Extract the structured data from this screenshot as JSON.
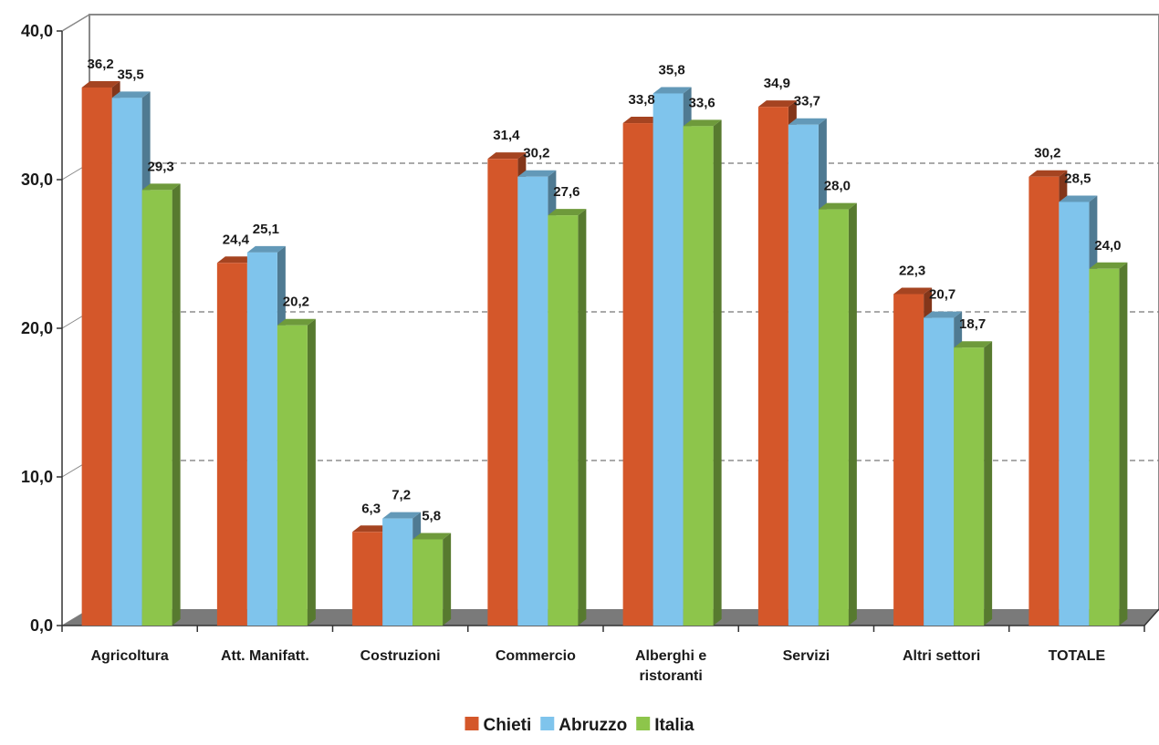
{
  "chart_data": {
    "type": "bar",
    "title": "",
    "xlabel": "",
    "ylabel": "",
    "ylim": [
      0,
      40
    ],
    "yticks": [
      "0,0",
      "10,0",
      "20,0",
      "30,0",
      "40,0"
    ],
    "grid": true,
    "legend_position": "bottom",
    "categories": [
      [
        "Agricoltura"
      ],
      [
        "Att. Manifatt."
      ],
      [
        "Costruzioni"
      ],
      [
        "Commercio"
      ],
      [
        "Alberghi e",
        "ristoranti"
      ],
      [
        "Servizi"
      ],
      [
        "Altri settori"
      ],
      [
        "TOTALE"
      ]
    ],
    "series": [
      {
        "name": "Chieti",
        "color": "#d4572a",
        "values": [
          36.2,
          24.4,
          6.3,
          31.4,
          33.8,
          34.9,
          22.3,
          30.2
        ],
        "labels": [
          "36,2",
          "24,4",
          "6,3",
          "31,4",
          "33,8",
          "34,9",
          "22,3",
          "30,2"
        ]
      },
      {
        "name": "Abruzzo",
        "color": "#7fc4ec",
        "values": [
          35.5,
          25.1,
          7.2,
          30.2,
          35.8,
          33.7,
          20.7,
          28.5
        ],
        "labels": [
          "35,5",
          "25,1",
          "7,2",
          "30,2",
          "35,8",
          "33,7",
          "20,7",
          "28,5"
        ]
      },
      {
        "name": "Italia",
        "color": "#8dc54b",
        "values": [
          29.3,
          20.2,
          5.8,
          27.6,
          33.6,
          28.0,
          18.7,
          24.0
        ],
        "labels": [
          "29,3",
          "20,2",
          "5,8",
          "27,6",
          "33,6",
          "28,0",
          "18,7",
          "24,0"
        ]
      }
    ]
  }
}
